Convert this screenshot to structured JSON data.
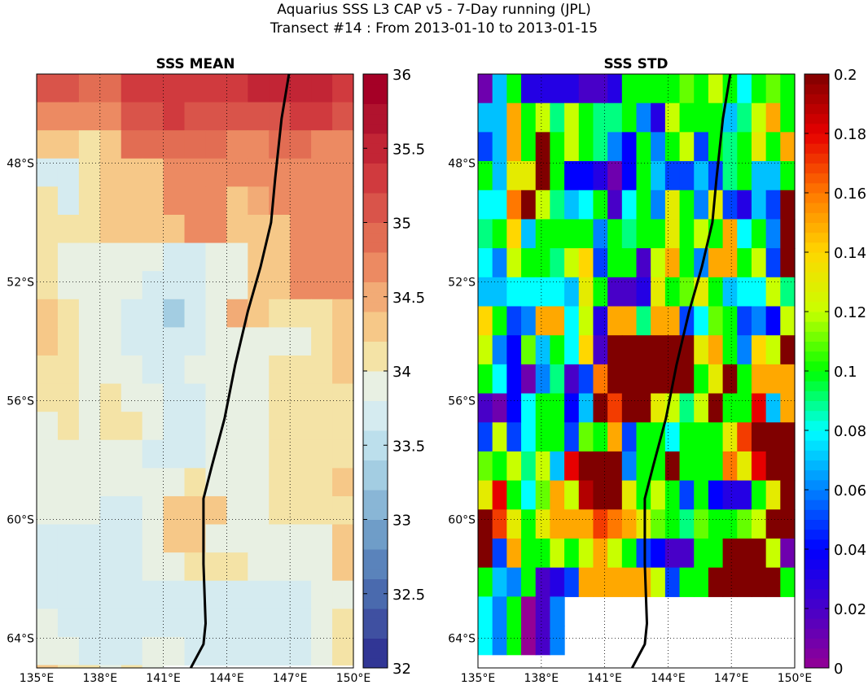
{
  "title_line1": "Aquarius SSS L3 CAP v5 - 7-Day running (JPL)",
  "title_line2": "Transect #14 : From 2013-01-10 to 2013-01-15",
  "chart_data": [
    {
      "type": "heatmap",
      "title": "SSS MEAN",
      "x_ticks": [
        "135°E",
        "138°E",
        "141°E",
        "144°E",
        "147°E",
        "150°E"
      ],
      "y_ticks": [
        "48°S",
        "52°S",
        "56°S",
        "60°S",
        "64°S"
      ],
      "colorbar_ticks": [
        "36",
        "35.5",
        "35",
        "34.5",
        "34",
        "33.5",
        "33",
        "32.5",
        "32"
      ],
      "colorbar_range": [
        32,
        36
      ],
      "colormap": "RdYlBu_r (discrete, 20 levels)",
      "lon_range": [
        135,
        150
      ],
      "lat_range": [
        -65,
        -45
      ],
      "cell_size_deg": 1,
      "grid_rows_north_to_south": [
        "35.0,35.0,34.9,34.9,35.3,35.3,35.3,35.4,35.4,35.4,35.5,35.5,35.5,35.5,35.3",
        "34.6,34.6,34.6,34.6,35.0,35.0,35.3,35.1,35.1,35.1,35.1,35.1,35.4,35.4,35.1",
        "34.4,34.4,34.0,34.4,34.9,34.9,34.9,34.9,34.9,34.8,34.8,34.9,34.9,34.8,34.8",
        "33.6,33.6,34.0,34.4,34.4,34.4,34.7,34.7,34.8,34.8,34.8,34.8,34.8,34.8,34.8",
        "34.1,33.6,34.0,34.3,34.3,34.3,34.7,34.7,34.7,34.4,34.5,34.8,34.8,34.8,34.8",
        "34.1,34.1,34.0,34.3,34.3,34.3,34.3,34.7,34.7,34.4,34.4,34.4,34.8,34.8,34.8",
        "34.1,33.9,33.9,33.9,33.9,33.9,33.6,33.6,33.9,33.9,34.3,34.3,34.7,34.7,34.8",
        "34.1,33.9,33.9,33.9,33.9,33.6,33.6,33.6,33.9,33.9,34.3,34.3,34.7,34.7,34.8",
        "34.4,34.1,33.9,33.9,33.6,33.6,33.3,33.6,33.9,34.5,34.4,34.0,34.0,34.0,34.4",
        "34.4,34.0,33.9,33.9,33.6,33.6,33.6,33.6,33.9,33.9,33.9,33.9,33.9,34.0,34.4",
        "34.0,34.0,33.9,33.9,33.9,33.6,33.6,33.9,33.9,33.9,33.9,34.0,34.0,34.0,34.4",
        "34.0,34.0,33.9,34.0,33.9,33.9,33.6,33.6,33.9,33.9,33.9,34.0,34.0,34.0,34.0",
        "33.9,34.0,33.9,34.0,34.0,33.9,33.6,33.6,33.9,33.9,33.9,34.0,34.0,34.0,34.0",
        "33.9,33.9,33.9,33.9,33.9,33.6,33.6,33.6,33.9,33.9,33.9,34.0,34.0,34.0,34.0",
        "33.9,33.9,33.9,33.9,33.9,33.9,33.9,34.0,33.9,33.9,33.9,34.0,34.0,34.0,34.4",
        "33.9,33.9,33.9,33.6,33.6,33.9,34.4,34.4,34.4,33.9,33.9,34.0,34.0,34.0,34.0",
        "33.6,33.6,33.6,33.6,33.6,33.9,34.4,34.4,33.9,33.9,33.9,33.9,33.9,33.9,34.4",
        "33.6,33.6,33.6,33.6,33.6,33.9,33.9,34.0,34.0,34.0,33.9,33.9,33.9,33.9,34.4",
        "33.6,33.6,33.6,33.6,33.6,33.6,33.6,33.6,33.6,33.6,33.6,33.6,33.6,33.9,33.9",
        "33.9,33.6,33.6,33.6,33.6,33.6,33.6,33.6,33.6,33.6,33.6,33.6,33.6,33.9,34.0",
        "33.9,33.9,33.6,33.6,33.6,33.9,33.9,33.6,33.6,33.6,33.6,33.6,33.6,33.9,34.0",
        "34.4,34.0,34.0,33.9,34.0,33.9",
        "33.9,34.0,34.0,33.9,34.0,33.9"
      ]
    },
    {
      "type": "heatmap",
      "title": "SSS STD",
      "x_ticks": [
        "135°E",
        "138°E",
        "141°E",
        "144°E",
        "147°E",
        "150°E"
      ],
      "y_ticks": [
        "48°S",
        "52°S",
        "56°S",
        "60°S",
        "64°S"
      ],
      "colorbar_ticks": [
        "0.2",
        "0.18",
        "0.16",
        "0.14",
        "0.12",
        "0.1",
        "0.08",
        "0.06",
        "0.04",
        "0.02",
        "0"
      ],
      "colorbar_range": [
        0,
        0.2
      ],
      "colormap": "jet-like (magenta to dark red)",
      "lon_range": [
        135,
        150
      ],
      "lat_range": [
        -65,
        -45
      ],
      "cell_size_deg": 0.67,
      "grid_rows_north_to_south": [
        "0.01,0.07,0.10,0.03,0.03,0.03,0.03,0.02,0.02,0.03,0.10,0.10,0.10,0.10,0.11,0.10,0.12,0.10,0.08,0.10,0.11,0.10",
        "0.07,0.07,0.15,0.10,0.12,0.09,0.12,0.10,0.09,0.09,0.10,0.06,0.03,0.12,0.10,0.10,0.10,0.07,0.09,0.12,0.15,0.10",
        "0.05,0.07,0.15,0.10,0.20,0.10,0.12,0.10,0.09,0.06,0.04,0.10,0.06,0.10,0.12,0.05,0.10,0.09,0.10,0.13,0.10,0.15",
        "0.10,0.07,0.13,0.13,0.20,0.10,0.04,0.04,0.03,0.01,0.04,0.10,0.07,0.05,0.05,0.07,0.05,0.09,0.10,0.07,0.07,0.10",
        "0.08,0.08,0.16,0.20,0.12,0.09,0.07,0.08,0.10,0.02,0.08,0.10,0.06,0.13,0.10,0.06,0.13,0.05,0.03,0.07,0.05,0.20",
        "0.09,0.10,0.14,0.07,0.10,0.10,0.10,0.10,0.06,0.10,0.09,0.10,0.10,0.13,0.10,0.12,0.10,0.15,0.08,0.10,0.06,0.20",
        "0.08,0.06,0.12,0.10,0.10,0.09,0.12,0.14,0.05,0.10,0.10,0.02,0.12,0.15,0.10,0.06,0.15,0.15,0.10,0.12,0.05,0.20",
        "0.07,0.07,0.08,0.08,0.08,0.08,0.07,0.13,0.10,0.02,0.02,0.03,0.13,0.10,0.11,0.13,0.10,0.07,0.08,0.08,0.12,0.09",
        "0.14,0.10,0.05,0.06,0.15,0.15,0.08,0.12,0.03,0.15,0.15,0.09,0.15,0.15,0.05,0.08,0.11,0.10,0.05,0.06,0.04,0.12",
        "0.12,0.06,0.04,0.11,0.07,0.10,0.08,0.14,0.02,0.20,0.20,0.20,0.20,0.20,0.20,0.13,0.15,0.10,0.06,0.14,0.12,0.20",
        "0.10,0.08,0.04,0.01,0.06,0.09,0.02,0.05,0.16,0.20,0.20,0.20,0.20,0.20,0.20,0.10,0.13,0.20,0.10,0.15,0.15,0.15",
        "0.02,0.01,0.04,0.08,0.10,0.10,0.04,0.07,0.20,0.17,0.20,0.20,0.13,0.12,0.09,0.12,0.20,0.10,0.10,0.18,0.07,0.15",
        "0.05,0.12,0.05,0.08,0.10,0.10,0.05,0.11,0.10,0.15,0.05,0.10,0.10,0.08,0.10,0.10,0.10,0.13,0.17,0.20,0.20,0.20",
        "0.11,0.10,0.12,0.09,0.12,0.07,0.18,0.20,0.20,0.20,0.06,0.10,0.10,0.20,0.10,0.10,0.10,0.16,0.13,0.18,0.20,0.20",
        "0.13,0.18,0.10,0.08,0.11,0.15,0.12,0.19,0.20,0.20,0.13,0.10,0.12,0.10,0.05,0.10,0.04,0.03,0.03,0.10,0.13,0.20",
        "0.20,0.17,0.13,0.10,0.13,0.15,0.15,0.15,0.17,0.16,0.15,0.13,0.11,0.10,0.09,0.11,0.10,0.10,0.11,0.12,0.20,0.20",
        "0.20,0.05,0.15,0.10,0.10,0.12,0.10,0.12,0.15,0.12,0.10,0.05,0.04,0.02,0.02,0.10,0.10,0.20,0.20,0.20,0.12,0.01",
        "0.10,0.07,0.06,0.10,0.02,0.03,0.05,0.15,0.15,0.15,0.15,0.15,0.12,0.05,0.10,0.10,0.20,0.20,0.20,0.20,0.20,0.10",
        "0.08,0.06,0.10,0.00,0.02,0.06",
        "0.08,0.06,0.10,0.00,0.02,0.06"
      ]
    }
  ]
}
